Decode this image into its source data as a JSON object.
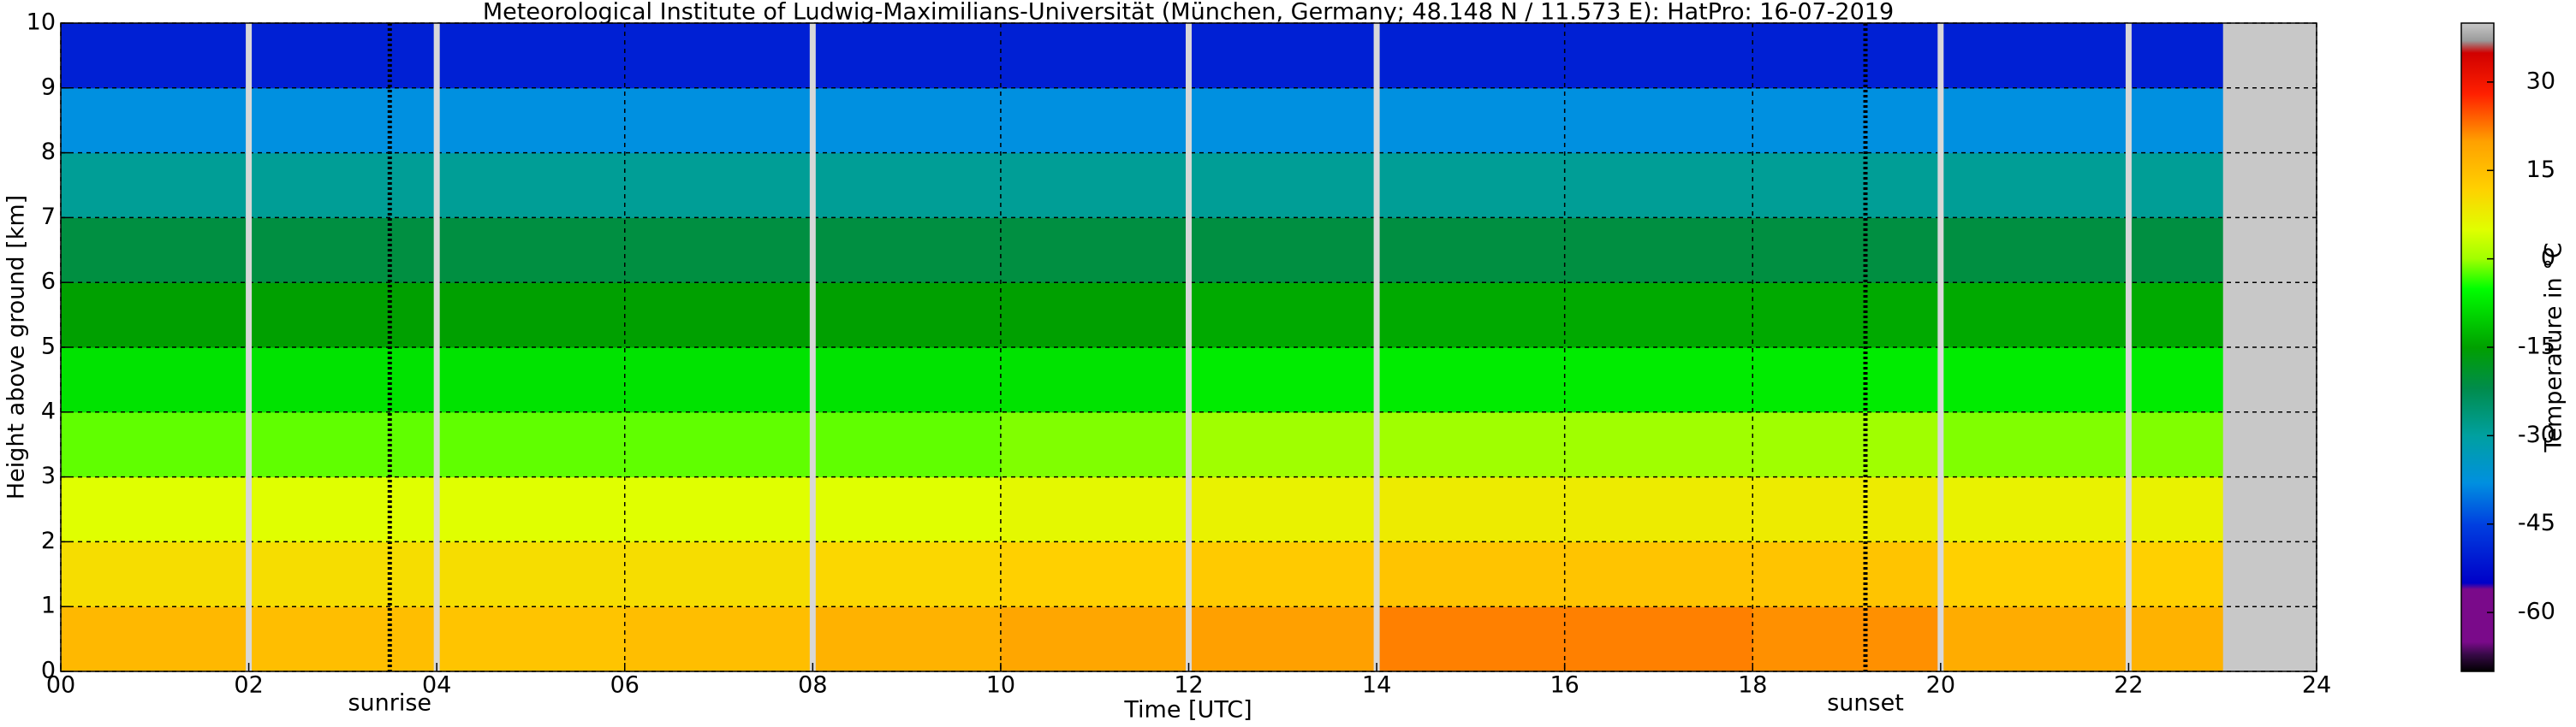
{
  "chart_data": {
    "type": "heatmap",
    "title": "Meteorological Institute of Ludwig-Maximilians-Universität (München, Germany; 48.148 N / 11.573 E):    HatPro: 16-07-2019",
    "xlabel": "Time [UTC]",
    "ylabel": "Height above ground [km]",
    "xlim": [
      0,
      24
    ],
    "ylim": [
      0,
      10
    ],
    "xticks": [
      {
        "value": 0,
        "label": "00"
      },
      {
        "value": 2,
        "label": "02"
      },
      {
        "value": 4,
        "label": "04"
      },
      {
        "value": 6,
        "label": "06"
      },
      {
        "value": 8,
        "label": "08"
      },
      10,
      12,
      14,
      16,
      18,
      20,
      22,
      24
    ],
    "yticks": [
      0,
      1,
      2,
      3,
      4,
      5,
      6,
      7,
      8,
      9,
      10
    ],
    "grid": true,
    "x_edges": [
      0,
      2,
      4,
      6,
      8,
      10,
      12,
      14,
      16,
      18,
      20,
      22,
      23
    ],
    "y_edges": [
      0,
      1,
      2,
      3,
      4,
      5,
      6,
      7,
      8,
      9,
      10
    ],
    "z": [
      [
        16,
        15,
        14,
        15,
        17,
        19,
        20,
        22,
        22,
        21,
        18,
        17
      ],
      [
        10,
        10,
        10,
        10,
        11,
        12,
        13,
        14,
        14,
        14,
        12,
        12
      ],
      [
        5,
        5,
        5,
        5,
        5,
        6,
        7,
        8,
        8,
        8,
        7,
        7
      ],
      [
        -2,
        -2,
        -2,
        -2,
        -2,
        -1,
        0,
        0,
        0,
        0,
        -1,
        -1
      ],
      [
        -8,
        -8,
        -8,
        -8,
        -8,
        -8,
        -7,
        -7,
        -7,
        -7,
        -7,
        -7
      ],
      [
        -15,
        -15,
        -15,
        -15,
        -15,
        -15,
        -14,
        -14,
        -14,
        -14,
        -14,
        -14
      ],
      [
        -21,
        -21,
        -21,
        -21,
        -21,
        -21,
        -21,
        -21,
        -21,
        -21,
        -21,
        -21
      ],
      [
        -29,
        -29,
        -29,
        -29,
        -29,
        -29,
        -29,
        -29,
        -29,
        -29,
        -29,
        -29
      ],
      [
        -38,
        -38,
        -38,
        -38,
        -38,
        -38,
        -38,
        -38,
        -38,
        -38,
        -38,
        -38
      ],
      [
        -50,
        -50,
        -50,
        -50,
        -50,
        -50,
        -50,
        -50,
        -50,
        -50,
        -50,
        -50
      ]
    ],
    "gaps": [
      2,
      4,
      8,
      12,
      14,
      20,
      22
    ],
    "no_data_color": "#c8c8c8",
    "annotations": [
      {
        "text": "sunrise",
        "x": 3.5
      },
      {
        "text": "sunset",
        "x": 19.2
      }
    ],
    "colorbar": {
      "label": "Temperature in °C",
      "lim": [
        -70,
        40
      ],
      "ticks": [
        -60,
        -45,
        -30,
        -15,
        0,
        15,
        30
      ]
    },
    "colormap": [
      {
        "value": -70,
        "color": "#000000"
      },
      {
        "value": -67,
        "color": "#3a0a4a"
      },
      {
        "value": -65,
        "color": "#7a0a8a"
      },
      {
        "value": -56,
        "color": "#7a0a8a"
      },
      {
        "value": -55,
        "color": "#0000c8"
      },
      {
        "value": -45,
        "color": "#0040e0"
      },
      {
        "value": -38,
        "color": "#0090e0"
      },
      {
        "value": -30,
        "color": "#00a0a0"
      },
      {
        "value": -22,
        "color": "#008c4c"
      },
      {
        "value": -15,
        "color": "#00a000"
      },
      {
        "value": -5,
        "color": "#00ff00"
      },
      {
        "value": 0,
        "color": "#a0ff00"
      },
      {
        "value": 5,
        "color": "#e0ff00"
      },
      {
        "value": 12,
        "color": "#ffd000"
      },
      {
        "value": 20,
        "color": "#ffa000"
      },
      {
        "value": 28,
        "color": "#ff2000"
      },
      {
        "value": 35,
        "color": "#d00000"
      },
      {
        "value": 37,
        "color": "#999999"
      },
      {
        "value": 40,
        "color": "#c8c8c8"
      }
    ]
  }
}
